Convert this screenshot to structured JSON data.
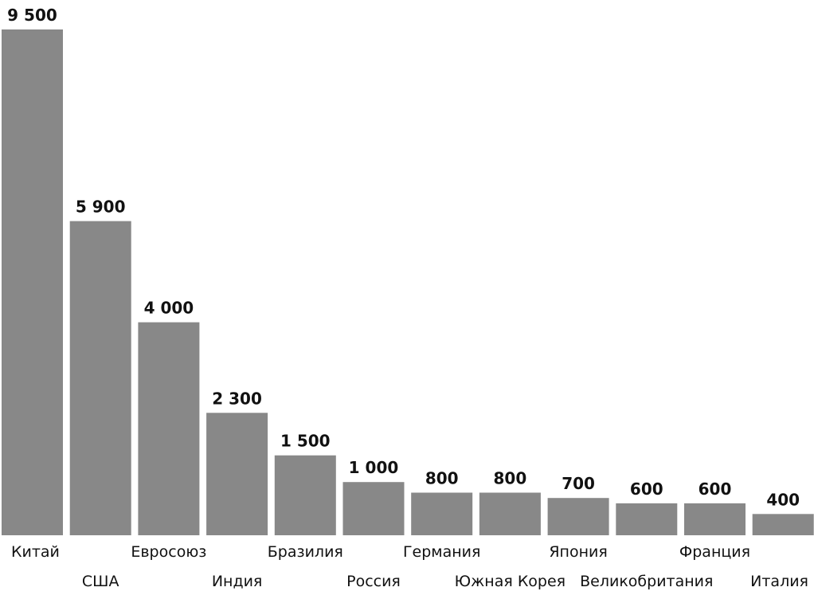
{
  "chart_data": {
    "type": "bar",
    "title": "",
    "xlabel": "",
    "ylabel": "",
    "categories": [
      "Китай",
      "США",
      "Евросоюз",
      "Индия",
      "Бразилия",
      "Россия",
      "Германия",
      "Южная Корея",
      "Япония",
      "Великобритания",
      "Франция",
      "Италия"
    ],
    "values": [
      9500,
      5900,
      4000,
      2300,
      1500,
      1000,
      800,
      800,
      700,
      600,
      600,
      400
    ],
    "value_labels": [
      "9 500",
      "5 900",
      "4 000",
      "2 300",
      "1 500",
      "1 000",
      "800",
      "800",
      "700",
      "600",
      "600",
      "400"
    ],
    "ylim": [
      0,
      9500
    ],
    "grid": false,
    "bar_color": "#888888",
    "text_color": "#111111"
  }
}
